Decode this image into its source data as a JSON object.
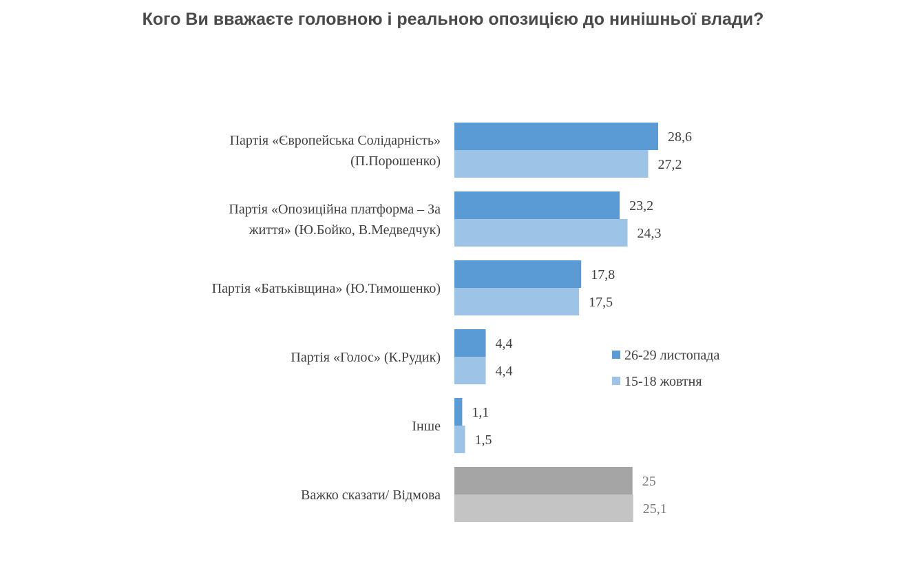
{
  "title": "Кого Ви вважаєте головною і реальною опозицією до нинішньої влади?",
  "chart_data": {
    "type": "bar",
    "orientation": "horizontal",
    "title": "Кого Ви вважаєте головною і реальною опозицією до нинішньої влади?",
    "categories": [
      [
        "Партія «Європейська Солідарність»",
        "(П.Порошенко)"
      ],
      [
        "Партія «Опозиційна платформа – За",
        "життя» (Ю.Бойко, В.Медведчук)"
      ],
      [
        "Партія «Батьківщина» (Ю.Тимошенко)"
      ],
      [
        "Партія «Голос» (К.Рудик)"
      ],
      [
        "Інше"
      ],
      [
        "Важко сказати/ Відмова"
      ]
    ],
    "series": [
      {
        "name": "26-29 листопада",
        "values": [
          28.6,
          23.2,
          17.8,
          4.4,
          1.1,
          25
        ],
        "labels": [
          "28,6",
          "23,2",
          "17,8",
          "4,4",
          "1,1",
          "25"
        ],
        "color": "#5b9bd5",
        "special_color": "#a5a5a5"
      },
      {
        "name": "15-18 жовтня",
        "values": [
          27.2,
          24.3,
          17.5,
          4.4,
          1.5,
          25.1
        ],
        "labels": [
          "27,2",
          "24,3",
          "17,5",
          "4,4",
          "1,5",
          "25,1"
        ],
        "color": "#9dc3e6",
        "special_color": "#c4c4c4"
      }
    ],
    "special_category_index": 5,
    "xlim": [
      0,
      30
    ],
    "grid": false,
    "legend_position": "right"
  }
}
